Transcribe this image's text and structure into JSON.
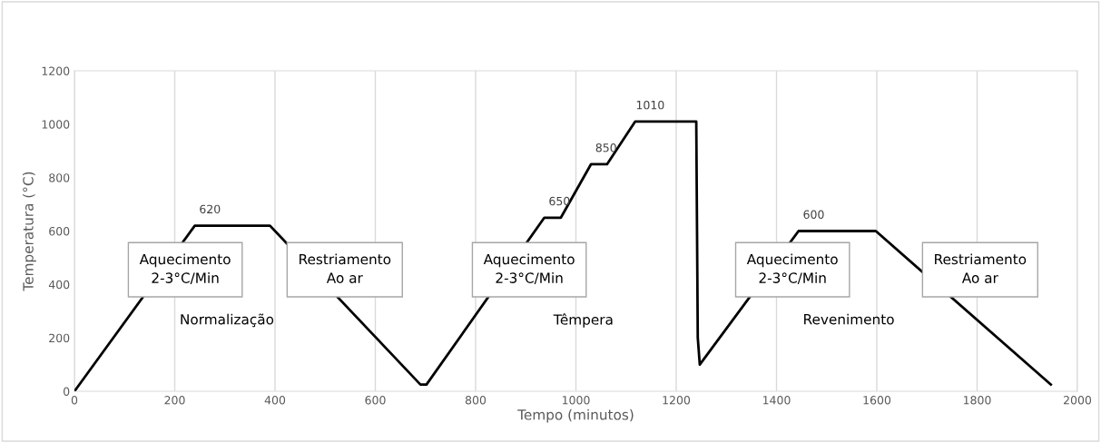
{
  "chart_data": {
    "type": "line",
    "xlabel": "Tempo (minutos)",
    "ylabel": "Temperatura (°C)",
    "x": [
      0,
      240,
      390,
      690,
      702,
      937,
      970,
      1030,
      1062,
      1118,
      1240,
      1243,
      1247,
      1444,
      1598,
      1947
    ],
    "series": [
      {
        "color": "#000000",
        "values": [
          0,
          620,
          620,
          25,
          25,
          650,
          650,
          850,
          850,
          1010,
          1010,
          200,
          100,
          600,
          600,
          25
        ]
      }
    ],
    "xlim": [
      0,
      2000
    ],
    "xticks": [
      0,
      200,
      400,
      600,
      800,
      1000,
      1200,
      1400,
      1600,
      1800,
      2000
    ],
    "ylim": [
      0,
      1200
    ],
    "yticks": [
      0,
      200,
      400,
      600,
      800,
      1000,
      1200
    ],
    "grid": "x",
    "marker": "none",
    "line_style": "solid",
    "annotations": [
      {
        "text": "620",
        "x": 240,
        "y": 620
      },
      {
        "text": "650",
        "x": 937,
        "y": 650
      },
      {
        "text": "850",
        "x": 1030,
        "y": 850
      },
      {
        "text": "1010",
        "x": 1118,
        "y": 1010
      },
      {
        "text": "600",
        "x": 1444,
        "y": 600
      },
      "Aquecimento\n2-3°C/Min",
      "Restriamento\nAo ar",
      "Aquecimento\n2-3°C/Min",
      "Aquecimento\n2-3°C/Min",
      "Restriamento\nAo ar",
      "Normalização",
      "Têmpera",
      "Revenimento"
    ]
  }
}
